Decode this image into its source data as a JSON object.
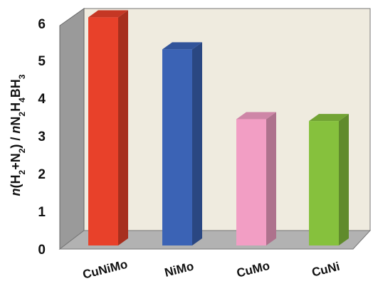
{
  "chart_data": {
    "type": "bar",
    "categories": [
      "CuNiMo",
      "NiMo",
      "CuMo",
      "CuNi"
    ],
    "values": [
      6.05,
      5.2,
      3.35,
      3.3
    ],
    "colors": [
      "#e8412a",
      "#3b63b5",
      "#f29ec4",
      "#86c13d"
    ],
    "ylabel": "n(H2+N2) / nN2H4BH3",
    "ylim": [
      0,
      6
    ],
    "yticks": [
      "0",
      "1",
      "2",
      "3",
      "4",
      "5",
      "6"
    ],
    "style": "3d-column",
    "grid": false,
    "legend": "none"
  }
}
